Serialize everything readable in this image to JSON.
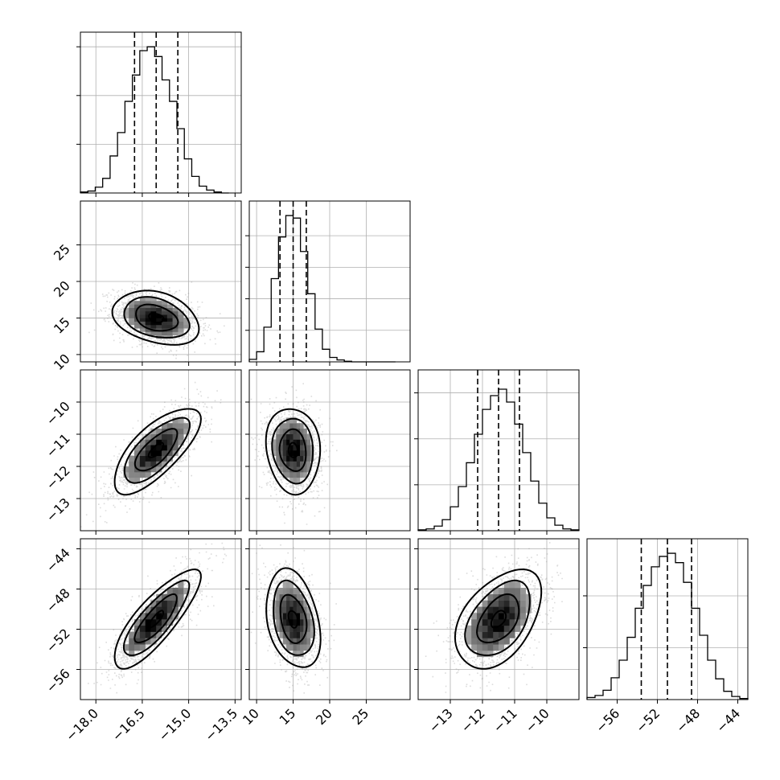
{
  "chart_data": {
    "type": "corner",
    "n_params": 4,
    "grid": true,
    "parameters": [
      {
        "index": 0,
        "range": [
          -18.5,
          -13.3
        ],
        "ticks": [
          -18.0,
          -16.5,
          -15.0,
          -13.5
        ],
        "tick_labels": [
          "−18.0",
          "−16.5",
          "−15.0",
          "−13.5"
        ],
        "quantiles": [
          -16.75,
          -16.05,
          -15.35
        ],
        "median": -16.05,
        "sigma": 0.68
      },
      {
        "index": 1,
        "range": [
          9,
          31
        ],
        "ticks": [
          10,
          15,
          20,
          25
        ],
        "tick_labels": [
          "10",
          "15",
          "20",
          "25"
        ],
        "quantiles": [
          13.2,
          15.0,
          16.8
        ],
        "median": 15.0,
        "sigma": 1.8
      },
      {
        "index": 2,
        "range": [
          -14.0,
          -9.0
        ],
        "ticks": [
          -13,
          -12,
          -11,
          -10
        ],
        "tick_labels": [
          "−13",
          "−12",
          "−11",
          "−10"
        ],
        "quantiles": [
          -12.15,
          -11.5,
          -10.85
        ],
        "median": -11.5,
        "sigma": 0.65
      },
      {
        "index": 3,
        "range": [
          -59,
          -43
        ],
        "ticks": [
          -56,
          -52,
          -48,
          -44
        ],
        "tick_labels": [
          "−56",
          "−52",
          "−48",
          "−44"
        ],
        "quantiles": [
          -53.6,
          -51.0,
          -48.6
        ],
        "median": -51.0,
        "sigma": 2.4
      }
    ],
    "correlations": [
      {
        "pair": [
          0,
          1
        ],
        "rho": -0.3
      },
      {
        "pair": [
          0,
          2
        ],
        "rho": 0.72
      },
      {
        "pair": [
          0,
          3
        ],
        "rho": 0.82
      },
      {
        "pair": [
          1,
          2
        ],
        "rho": -0.1
      },
      {
        "pair": [
          1,
          3
        ],
        "rho": -0.3
      },
      {
        "pair": [
          2,
          3
        ],
        "rho": 0.45
      }
    ],
    "histograms": [
      {
        "param": 0,
        "bin_edges": [
          -18.5,
          -18.26,
          -18.02,
          -17.78,
          -17.54,
          -17.3,
          -17.06,
          -16.82,
          -16.58,
          -16.34,
          -16.1,
          -15.86,
          -15.62,
          -15.38,
          -15.14,
          -14.9,
          -14.66,
          -14.42,
          -14.18,
          -13.94,
          -13.7
        ],
        "counts": [
          1,
          2,
          6,
          15,
          38,
          62,
          94,
          121,
          146,
          150,
          140,
          116,
          94,
          66,
          35,
          17,
          7,
          3,
          1,
          0
        ],
        "yticks": [
          50,
          100,
          150
        ],
        "ymax": 165
      },
      {
        "param": 1,
        "bin_edges": [
          9,
          10,
          11,
          12,
          13,
          14,
          15,
          16,
          17,
          18,
          19,
          20,
          21,
          22,
          23,
          24,
          25,
          26,
          27,
          28,
          29
        ],
        "counts": [
          4,
          16,
          55,
          132,
          198,
          232,
          228,
          175,
          108,
          52,
          20,
          7,
          3,
          1,
          0,
          0,
          0,
          0,
          0,
          0
        ],
        "yticks": [
          50,
          100,
          150,
          200
        ],
        "ymax": 255
      },
      {
        "param": 2,
        "bin_edges": [
          -14.0,
          -13.75,
          -13.5,
          -13.25,
          -13.0,
          -12.75,
          -12.5,
          -12.25,
          -12.0,
          -11.75,
          -11.5,
          -11.25,
          -11.0,
          -10.75,
          -10.5,
          -10.25,
          -10.0,
          -9.75,
          -9.5,
          -9.25,
          -9.0
        ],
        "counts": [
          1,
          2,
          5,
          12,
          26,
          48,
          74,
          105,
          132,
          147,
          154,
          140,
          116,
          85,
          54,
          30,
          14,
          6,
          2,
          1
        ],
        "yticks": [
          50,
          100,
          150
        ],
        "ymax": 175
      },
      {
        "param": 3,
        "bin_edges": [
          -59.0,
          -58.2,
          -57.4,
          -56.6,
          -55.8,
          -55.0,
          -54.2,
          -53.4,
          -52.6,
          -51.8,
          -51.0,
          -50.2,
          -49.4,
          -48.6,
          -47.8,
          -47.0,
          -46.2,
          -45.4,
          -44.6,
          -43.8,
          -43.0
        ],
        "counts": [
          2,
          4,
          9,
          21,
          38,
          60,
          88,
          110,
          128,
          138,
          141,
          132,
          113,
          88,
          62,
          38,
          20,
          8,
          3,
          1
        ],
        "yticks": [
          50,
          100
        ],
        "ymax": 155
      }
    ]
  }
}
